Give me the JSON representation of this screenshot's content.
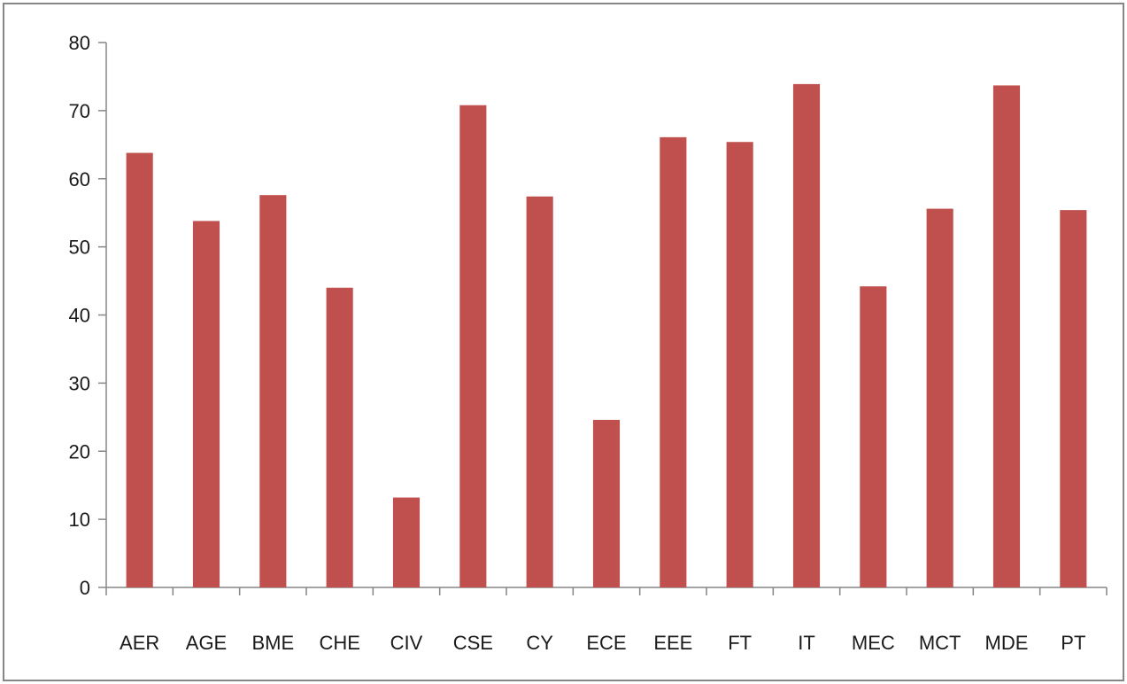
{
  "chart_data": {
    "type": "bar",
    "title": "",
    "xlabel": "",
    "ylabel": "",
    "categories": [
      "AER",
      "AGE",
      "BME",
      "CHE",
      "CIV",
      "CSE",
      "CY",
      "ECE",
      "EEE",
      "FT",
      "IT",
      "MEC",
      "MCT",
      "MDE",
      "PT"
    ],
    "values": [
      63.8,
      53.8,
      57.6,
      44.0,
      13.2,
      70.8,
      57.4,
      24.6,
      66.1,
      65.4,
      73.9,
      44.2,
      55.6,
      73.7,
      55.4
    ],
    "ylim": [
      0,
      80
    ],
    "yticks": [
      "0",
      "10",
      "20",
      "30",
      "40",
      "50",
      "60",
      "70",
      "80"
    ],
    "grid": false,
    "legend": "none",
    "bar_color": "#C0504D",
    "axis_color": "#868686"
  }
}
